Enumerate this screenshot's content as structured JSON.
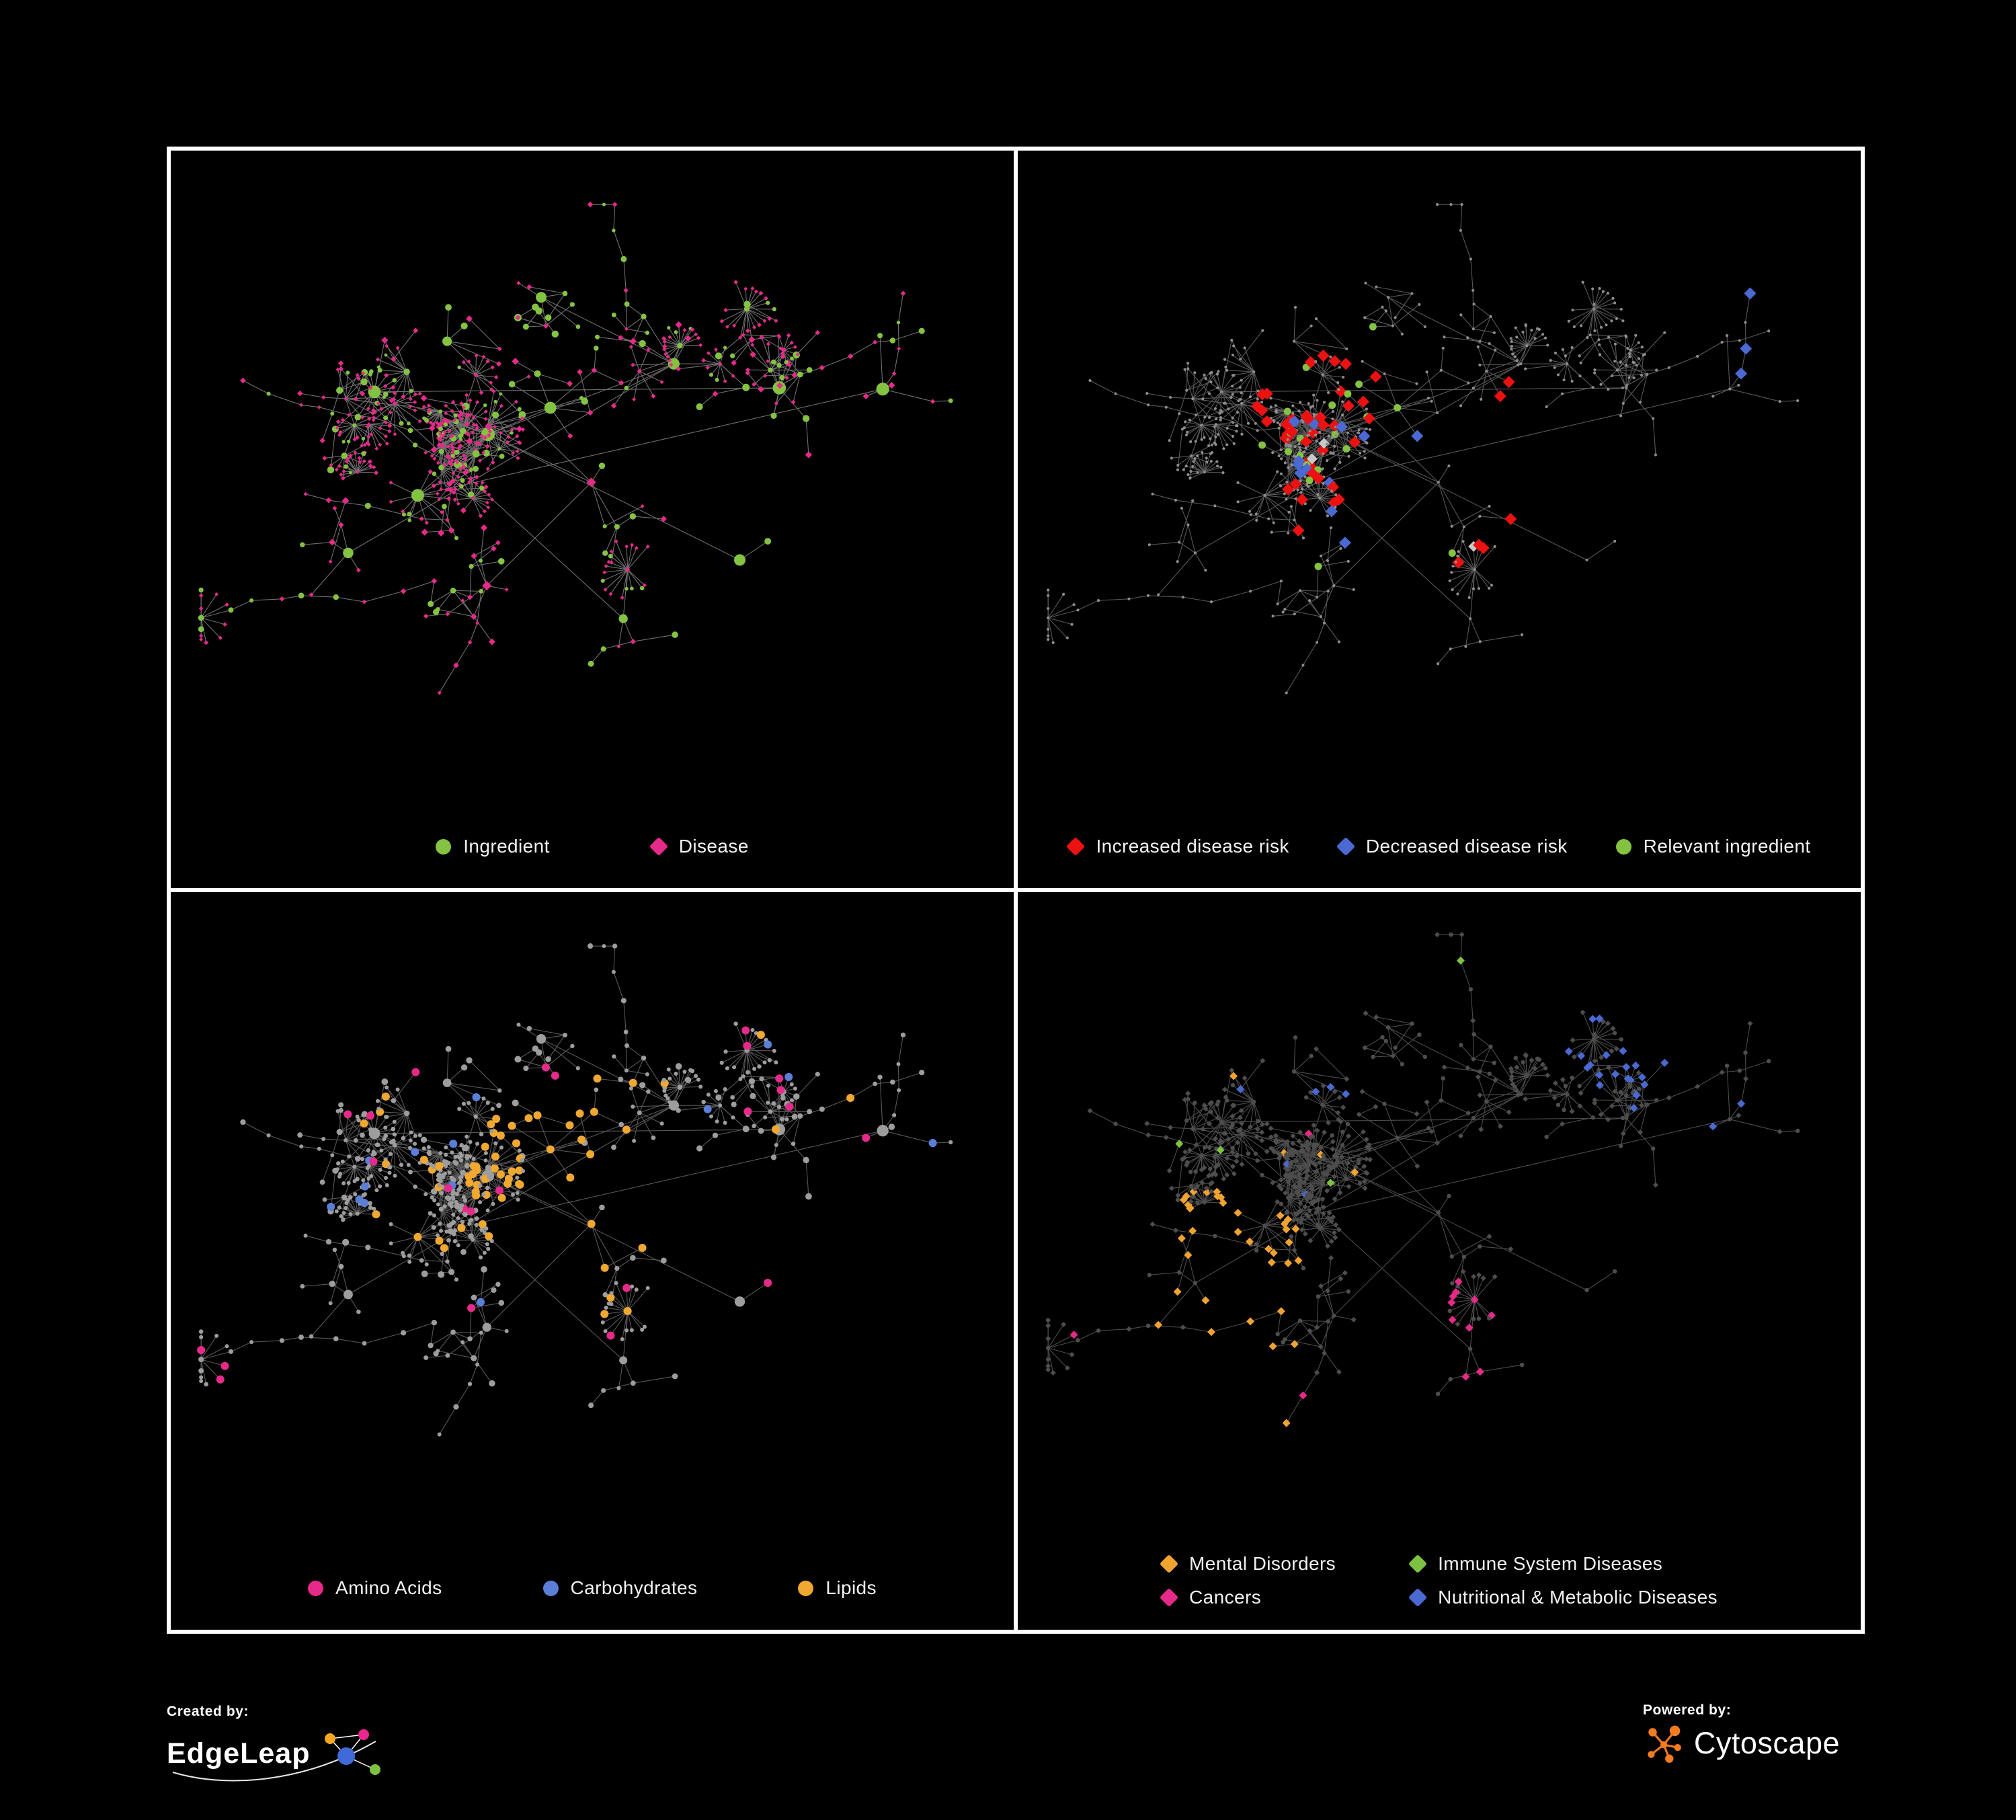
{
  "canvas": {
    "background": "#000000",
    "panel_border": "#ffffff"
  },
  "panels": [
    {
      "id": "ingredient-disease",
      "legend": [
        {
          "label": "Ingredient",
          "shape": "circle",
          "color": "#84c341"
        },
        {
          "label": "Disease",
          "shape": "diamond",
          "color": "#e62a89"
        }
      ]
    },
    {
      "id": "disease-risk",
      "legend": [
        {
          "label": "Increased disease risk",
          "shape": "diamond",
          "color": "#ee1111"
        },
        {
          "label": "Decreased disease risk",
          "shape": "diamond",
          "color": "#4a69d2"
        },
        {
          "label": "Relevant ingredient",
          "shape": "circle",
          "color": "#84c341"
        }
      ]
    },
    {
      "id": "nutrient-classes",
      "legend": [
        {
          "label": "Amino Acids",
          "shape": "circle",
          "color": "#e62a89"
        },
        {
          "label": "Carbohydrates",
          "shape": "circle",
          "color": "#5b7fd8"
        },
        {
          "label": "Lipids",
          "shape": "circle",
          "color": "#f0a830"
        }
      ]
    },
    {
      "id": "disease-categories",
      "legend": [
        {
          "label": "Mental Disorders",
          "shape": "diamond",
          "color": "#f0a32f"
        },
        {
          "label": "Immune System Diseases",
          "shape": "diamond",
          "color": "#7dc242"
        },
        {
          "label": "Cancers",
          "shape": "diamond",
          "color": "#e62a89"
        },
        {
          "label": "Nutritional & Metabolic Diseases",
          "shape": "diamond",
          "color": "#4a69d2"
        }
      ]
    }
  ],
  "network_style": {
    "edge_colors": [
      "#8c8c8c",
      "#6f6f6f",
      "#6f6f6f",
      "#5f5f5f"
    ],
    "muted_node_colors": [
      "",
      "#8d8d8d",
      "#9d9d9d",
      "#4d4d4d"
    ],
    "neutral_diamond_color": "#c9c9c9"
  },
  "footer": {
    "created_by_label": "Created by:",
    "created_by_name": "EdgeLeap",
    "powered_by_label": "Powered by:",
    "powered_by_name": "Cytoscape",
    "cytoscape_orange": "#f47b20",
    "edgeleap_colors": {
      "orange": "#f5a623",
      "magenta": "#ec268f",
      "blue": "#3f6ad8",
      "green": "#7dc242"
    }
  }
}
